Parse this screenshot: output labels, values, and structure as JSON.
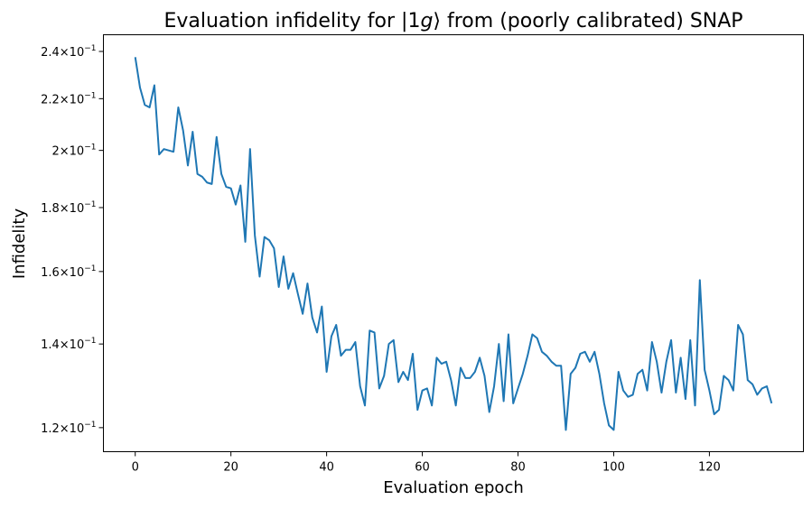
{
  "chart_data": {
    "type": "line",
    "title": "Evaluation infidelity for |1g⟩ from (poorly calibrated) SNAP",
    "title_parts": {
      "before": "Evaluation infidelity for |1",
      "italic": "g",
      "after": "⟩ from (poorly calibrated) SNAP"
    },
    "xlabel": "Evaluation epoch",
    "ylabel": "Infidelity",
    "xlim": [
      -6.65,
      139.65
    ],
    "ylim": [
      0.1148,
      0.2475
    ],
    "yscale": "log",
    "grid": false,
    "legend": "none",
    "xticks": [
      0,
      20,
      40,
      60,
      80,
      100,
      120
    ],
    "xtick_labels": [
      "0",
      "20",
      "40",
      "60",
      "80",
      "100",
      "120"
    ],
    "yticks": [
      0.12,
      0.14,
      0.16,
      0.18,
      0.2,
      0.22,
      0.24
    ],
    "ytick_labels": [
      {
        "mantissa": "1.2",
        "base": "10",
        "exp": "−1"
      },
      {
        "mantissa": "1.4",
        "base": "10",
        "exp": "−1"
      },
      {
        "mantissa": "1.6",
        "base": "10",
        "exp": "−1"
      },
      {
        "mantissa": "1.8",
        "base": "10",
        "exp": "−1"
      },
      {
        "mantissa": "2",
        "base": "10",
        "exp": "−1"
      },
      {
        "mantissa": "2.2",
        "base": "10",
        "exp": "−1"
      },
      {
        "mantissa": "2.4",
        "base": "10",
        "exp": "−1"
      }
    ],
    "series": [
      {
        "color": "#1f77b4",
        "x": [
          0,
          1,
          2,
          3,
          4,
          5,
          6,
          7,
          8,
          9,
          10,
          11,
          12,
          13,
          14,
          15,
          16,
          17,
          18,
          19,
          20,
          21,
          22,
          23,
          24,
          25,
          26,
          27,
          28,
          29,
          30,
          31,
          32,
          33,
          34,
          35,
          36,
          37,
          38,
          39,
          40,
          41,
          42,
          43,
          44,
          45,
          46,
          47,
          48,
          49,
          50,
          51,
          52,
          53,
          54,
          55,
          56,
          57,
          58,
          59,
          60,
          61,
          62,
          63,
          64,
          65,
          66,
          67,
          68,
          69,
          70,
          71,
          72,
          73,
          74,
          75,
          76,
          77,
          78,
          79,
          80,
          81,
          82,
          83,
          84,
          85,
          86,
          87,
          88,
          89,
          90,
          91,
          92,
          93,
          94,
          95,
          96,
          97,
          98,
          99,
          100,
          101,
          102,
          103,
          104,
          105,
          106,
          107,
          108,
          109,
          110,
          111,
          112,
          113,
          114,
          115,
          116,
          117,
          118,
          119,
          120,
          121,
          122,
          123,
          124,
          125,
          126,
          127,
          128,
          129,
          130,
          131,
          132,
          133
        ],
        "y": [
          0.2375,
          0.2245,
          0.2175,
          0.2165,
          0.2255,
          0.1985,
          0.2005,
          0.2,
          0.1995,
          0.2165,
          0.2075,
          0.1945,
          0.207,
          0.1915,
          0.1905,
          0.1885,
          0.188,
          0.205,
          0.1915,
          0.187,
          0.1865,
          0.181,
          0.1875,
          0.169,
          0.2005,
          0.171,
          0.1585,
          0.1705,
          0.1695,
          0.167,
          0.1555,
          0.1645,
          0.155,
          0.1595,
          0.1535,
          0.148,
          0.1565,
          0.147,
          0.143,
          0.15,
          0.133,
          0.142,
          0.145,
          0.137,
          0.1385,
          0.1385,
          0.1405,
          0.1295,
          0.125,
          0.1435,
          0.143,
          0.129,
          0.132,
          0.14,
          0.141,
          0.1305,
          0.133,
          0.131,
          0.1375,
          0.124,
          0.1285,
          0.129,
          0.125,
          0.1365,
          0.135,
          0.1355,
          0.131,
          0.125,
          0.134,
          0.1315,
          0.1315,
          0.133,
          0.1365,
          0.132,
          0.1235,
          0.1295,
          0.14,
          0.126,
          0.1425,
          0.1255,
          0.129,
          0.1325,
          0.137,
          0.1425,
          0.1415,
          0.138,
          0.137,
          0.1355,
          0.1345,
          0.1345,
          0.1195,
          0.1325,
          0.134,
          0.1375,
          0.138,
          0.1355,
          0.138,
          0.1325,
          0.1255,
          0.1205,
          0.1195,
          0.133,
          0.1285,
          0.127,
          0.1275,
          0.1325,
          0.1335,
          0.1285,
          0.1405,
          0.1355,
          0.128,
          0.1355,
          0.141,
          0.128,
          0.1365,
          0.1265,
          0.141,
          0.125,
          0.1575,
          0.1335,
          0.1285,
          0.123,
          0.124,
          0.132,
          0.131,
          0.1285,
          0.145,
          0.1425,
          0.131,
          0.13,
          0.1275,
          0.129,
          0.1295,
          0.1255
        ]
      }
    ]
  }
}
